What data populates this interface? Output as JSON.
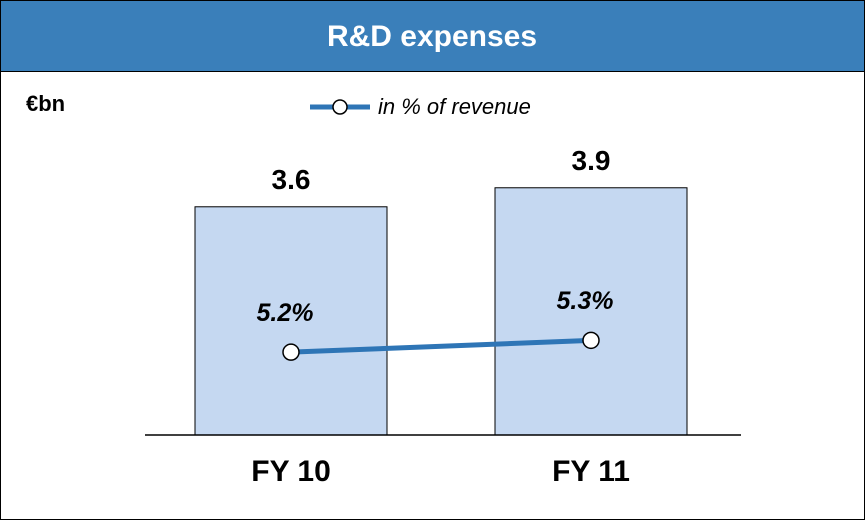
{
  "chart_data": {
    "type": "bar",
    "title": "R&D expenses",
    "unit": "€bn",
    "categories": [
      "FY 10",
      "FY 11"
    ],
    "values": [
      3.6,
      3.9
    ],
    "color": "#c5d8f1",
    "ylim": [
      0,
      5.6
    ],
    "line_series": {
      "name": "in % of revenue",
      "color": "#2e75b6",
      "axis": "y2",
      "values": [
        5.2,
        5.3
      ],
      "value_labels": [
        "5.2%",
        "5.3%"
      ]
    },
    "y2lim": [
      4.5,
      7.5
    ]
  }
}
